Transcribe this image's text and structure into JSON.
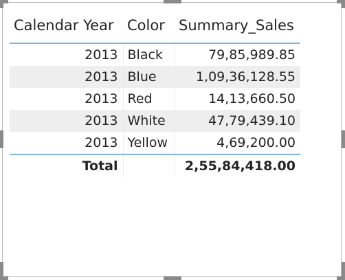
{
  "table": {
    "headers": {
      "year": "Calendar Year",
      "color": "Color",
      "sales": "Summary_Sales"
    },
    "rows": [
      {
        "year": "2013",
        "color": "Black",
        "sales": "79,85,989.85"
      },
      {
        "year": "2013",
        "color": "Blue",
        "sales": "1,09,36,128.55"
      },
      {
        "year": "2013",
        "color": "Red",
        "sales": "14,13,660.50"
      },
      {
        "year": "2013",
        "color": "White",
        "sales": "47,79,439.10"
      },
      {
        "year": "2013",
        "color": "Yellow",
        "sales": "4,69,200.00"
      }
    ],
    "total": {
      "label": "Total",
      "sales": "2,55,84,418.00"
    }
  },
  "colors": {
    "header_rule": "#7fb6dc",
    "alt_row": "#eeeeee",
    "text": "#252423"
  }
}
